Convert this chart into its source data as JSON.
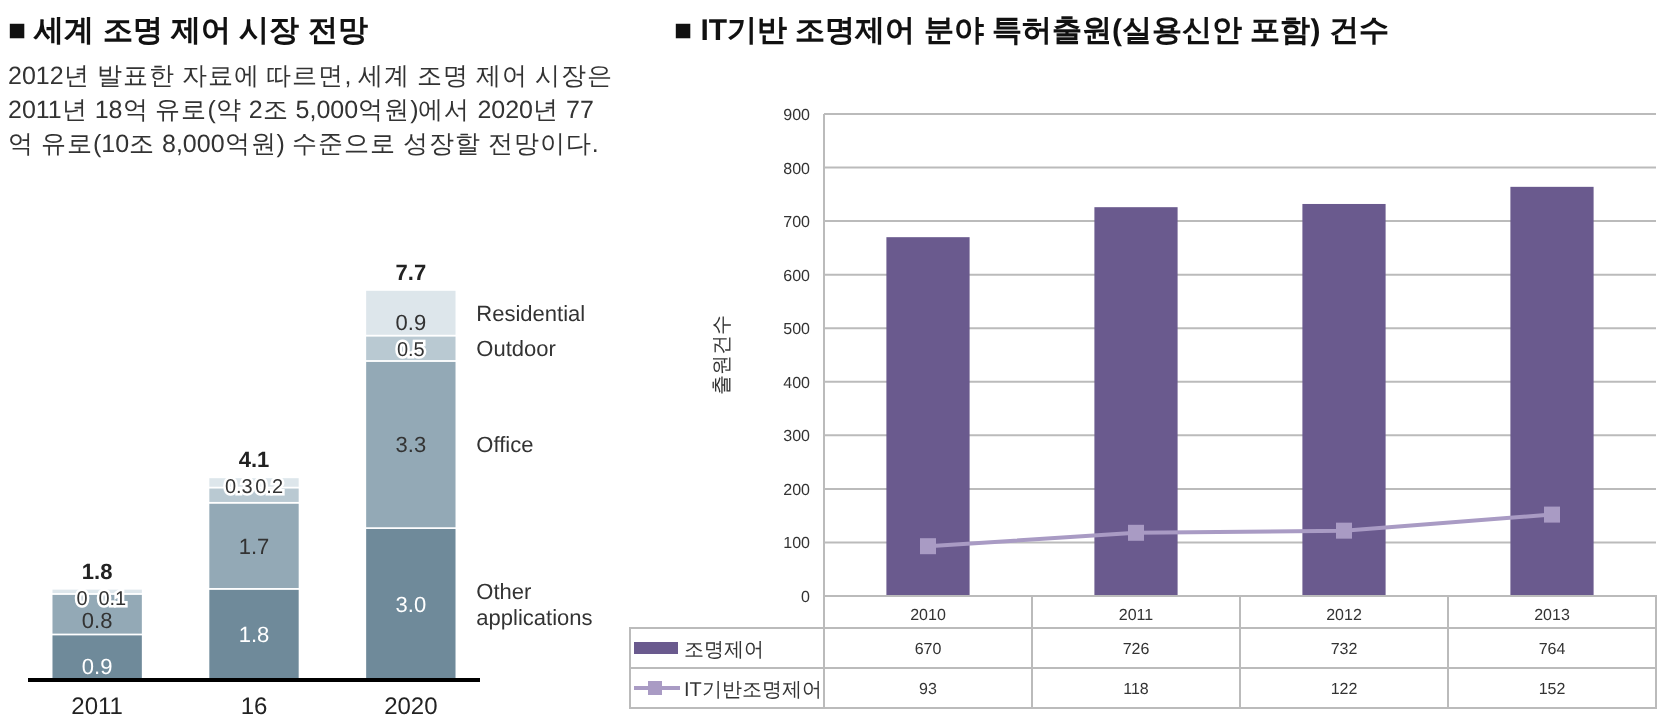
{
  "chart_data": [
    {
      "type": "bar",
      "stacked": true,
      "title": "■ 세계 조명 제어 시장 전망",
      "subtitle": "2012년 발표한 자료에 따르면, 세계 조명 제어 시장은 2011년 18억 유로(약 2조 5,000억원)에서 2020년 77억 유로(10조 8,000억원) 수준으로 성장할 전망이다.",
      "categories": [
        "2011",
        "16",
        "2020"
      ],
      "totals": [
        "1.8",
        "4.1",
        "7.7"
      ],
      "series": [
        {
          "name": "Other applications",
          "color": "#6f8a9a",
          "values": [
            0.9,
            1.8,
            3.0
          ],
          "value_labels": [
            "0.9",
            "1.8",
            "3.0"
          ]
        },
        {
          "name": "Office",
          "color": "#93a9b6",
          "values": [
            0.8,
            1.7,
            3.3
          ],
          "value_labels": [
            "0.8",
            "1.7",
            "3.3"
          ]
        },
        {
          "name": "Outdoor",
          "color": "#b9c9d2",
          "values": [
            0,
            0.3,
            0.5
          ],
          "value_labels": [
            "0",
            "0.3",
            "0.5"
          ]
        },
        {
          "name": "Residential",
          "color": "#dde6eb",
          "values": [
            0.1,
            0.2,
            0.9
          ],
          "value_labels": [
            "0.1",
            "0.2",
            "0.9"
          ]
        }
      ]
    },
    {
      "type": "bar",
      "title": "■ IT기반 조명제어 분야 특허출원(실용신안 포함) 건수",
      "ylabel": "출원건수",
      "categories": [
        "2010",
        "2011",
        "2012",
        "2013"
      ],
      "ylim": [
        0,
        900
      ],
      "yticks": [
        0,
        100,
        200,
        300,
        400,
        500,
        600,
        700,
        800,
        900
      ],
      "grid": "y",
      "data_labels": true,
      "marker": "square",
      "legend": "bottom",
      "series": [
        {
          "name": "조명제어",
          "color": "#6a5a8e",
          "values": [
            670,
            726,
            732,
            764
          ]
        },
        {
          "name": "IT기반조명제어",
          "type": "line",
          "color": "#a99bc4",
          "values": [
            93,
            118,
            122,
            152
          ]
        }
      ]
    }
  ]
}
